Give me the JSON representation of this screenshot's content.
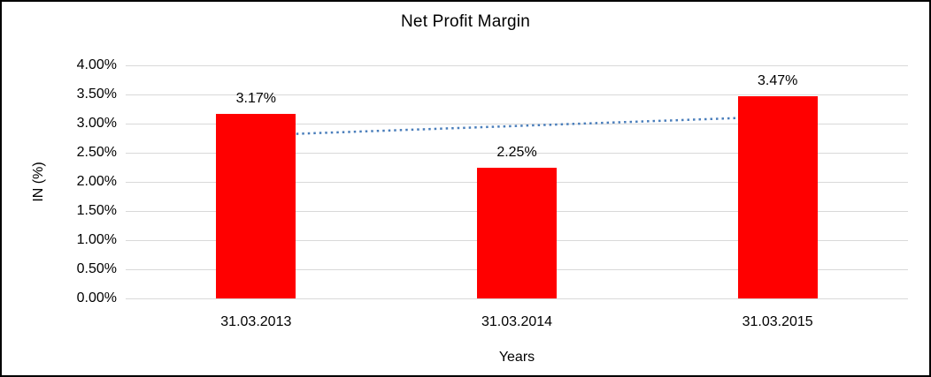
{
  "chart_data": {
    "type": "bar",
    "title": "Net Profit Margin",
    "xlabel": "Years",
    "ylabel": "IN (%)",
    "categories": [
      "31.03.2013",
      "31.03.2014",
      "31.03.2015"
    ],
    "values": [
      3.17,
      2.25,
      3.47
    ],
    "data_labels": [
      "3.17%",
      "2.25%",
      "3.47%"
    ],
    "ylim": [
      0,
      4
    ],
    "ytick_step": 0.5,
    "ytick_labels": [
      "0.00%",
      "0.50%",
      "1.00%",
      "1.50%",
      "2.00%",
      "2.50%",
      "3.00%",
      "3.50%",
      "4.00%"
    ],
    "grid": true,
    "legend": "none",
    "bar_color": "#ff0000",
    "gridline_color": "#d9d9d9",
    "trendline": {
      "style": "dotted",
      "color": "#4a7ebb",
      "start_value": 2.8,
      "end_value": 3.12
    }
  }
}
